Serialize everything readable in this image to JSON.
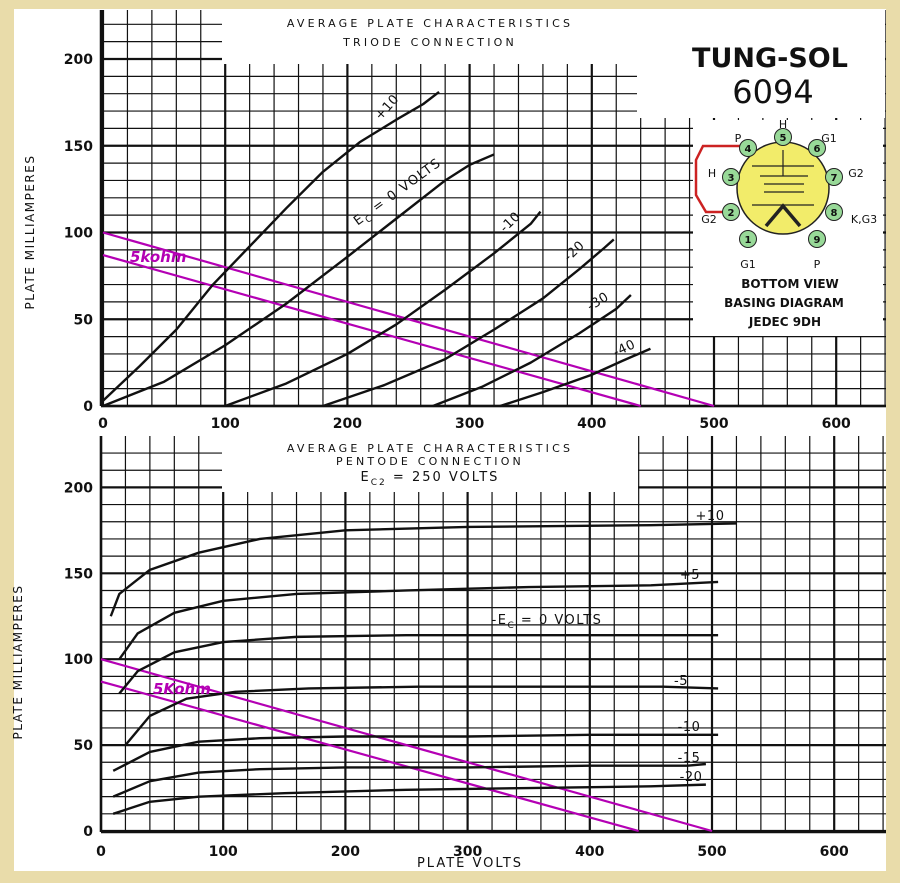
{
  "brand": {
    "name": "TUNG-SOL",
    "tube_type": "6094"
  },
  "basing": {
    "view": "BOTTOM VIEW",
    "diagram": "BASING DIAGRAM",
    "jedec": "JEDEC 9DH",
    "pins": [
      {
        "number": "1",
        "label": "G1"
      },
      {
        "number": "2",
        "label": "G2"
      },
      {
        "number": "3",
        "label": "H"
      },
      {
        "number": "4",
        "label": "P"
      },
      {
        "number": "5",
        "label": "H"
      },
      {
        "number": "6",
        "label": "G1"
      },
      {
        "number": "7",
        "label": "G2"
      },
      {
        "number": "8",
        "label": "K,G3"
      },
      {
        "number": "9",
        "label": "P"
      }
    ],
    "colors": {
      "disk": "#f2ec6a",
      "pin": "#98d998",
      "strap": "#cc2222"
    }
  },
  "chart_data": [
    {
      "type": "line",
      "title": "AVERAGE PLATE CHARACTERISTICS",
      "subtitle": "TRIODE CONNECTION",
      "xlabel": "",
      "ylabel": "PLATE MILLIAMPERES",
      "xlim": [
        0,
        640
      ],
      "ylim": [
        0,
        230
      ],
      "x_ticks": [
        "0",
        "100",
        "200",
        "300",
        "400",
        "500",
        "600"
      ],
      "y_ticks": [
        "0",
        "50",
        "100",
        "150",
        "200"
      ],
      "grid": true,
      "series": [
        {
          "name": "+10",
          "points": [
            [
              0,
              3
            ],
            [
              30,
              23
            ],
            [
              60,
              44
            ],
            [
              90,
              70
            ],
            [
              120,
              92
            ],
            [
              150,
              114
            ],
            [
              180,
              135
            ],
            [
              210,
              152
            ],
            [
              240,
              165
            ],
            [
              262,
              174
            ],
            [
              275,
              181
            ]
          ]
        },
        {
          "name": "E",
          "subscript": "C",
          "suffix": " = 0 VOLTS",
          "points": [
            [
              0,
              0
            ],
            [
              50,
              14
            ],
            [
              100,
              35
            ],
            [
              150,
              59
            ],
            [
              200,
              86
            ],
            [
              240,
              108
            ],
            [
              280,
              130
            ],
            [
              300,
              139
            ],
            [
              320,
              145
            ]
          ]
        },
        {
          "name": "-10",
          "points": [
            [
              100,
              0
            ],
            [
              150,
              13
            ],
            [
              200,
              30
            ],
            [
              240,
              47
            ],
            [
              280,
              67
            ],
            [
              320,
              88
            ],
            [
              350,
              105
            ],
            [
              358,
              112
            ]
          ]
        },
        {
          "name": "-20",
          "points": [
            [
              180,
              0
            ],
            [
              230,
              12
            ],
            [
              280,
              27
            ],
            [
              320,
              44
            ],
            [
              360,
              62
            ],
            [
              390,
              79
            ],
            [
              410,
              91
            ],
            [
              418,
              96
            ]
          ]
        },
        {
          "name": "-30",
          "points": [
            [
              270,
              0
            ],
            [
              310,
              11
            ],
            [
              350,
              25
            ],
            [
              390,
              42
            ],
            [
              420,
              56
            ],
            [
              432,
              64
            ]
          ]
        },
        {
          "name": "-40",
          "points": [
            [
              325,
              0
            ],
            [
              360,
              8
            ],
            [
              400,
              18
            ],
            [
              425,
              26
            ],
            [
              448,
              33
            ]
          ]
        }
      ],
      "load_lines": [
        {
          "label": "5kohm",
          "points": [
            [
              0,
              100
            ],
            [
              500,
              0
            ]
          ],
          "color": "#b400b4"
        },
        {
          "label": "",
          "points": [
            [
              0,
              87
            ],
            [
              440,
              0
            ]
          ],
          "color": "#b400b4"
        }
      ]
    },
    {
      "type": "line",
      "title": "AVERAGE PLATE CHARACTERISTICS",
      "subtitle": "PENTODE CONNECTION",
      "condition_name": "E",
      "condition_subscript": "C2",
      "condition_value": " = 250 VOLTS",
      "xlabel": "PLATE VOLTS",
      "ylabel": "PLATE MILLIAMPERES",
      "xlim": [
        0,
        640
      ],
      "ylim": [
        0,
        230
      ],
      "x_ticks": [
        "0",
        "100",
        "200",
        "300",
        "400",
        "500",
        "600"
      ],
      "y_ticks": [
        "0",
        "50",
        "100",
        "150",
        "200"
      ],
      "grid": true,
      "series": [
        {
          "name": "+10",
          "points": [
            [
              8,
              125
            ],
            [
              15,
              138
            ],
            [
              40,
              152
            ],
            [
              80,
              162
            ],
            [
              130,
              170
            ],
            [
              200,
              175
            ],
            [
              300,
              177
            ],
            [
              450,
              178
            ],
            [
              520,
              179
            ]
          ]
        },
        {
          "name": "+5",
          "points": [
            [
              15,
              100
            ],
            [
              30,
              115
            ],
            [
              60,
              127
            ],
            [
              100,
              134
            ],
            [
              160,
              138
            ],
            [
              250,
              140
            ],
            [
              350,
              142
            ],
            [
              450,
              143
            ],
            [
              505,
              145
            ]
          ]
        },
        {
          "name": "-E",
          "subscript": "C",
          "suffix": " = 0 VOLTS",
          "points": [
            [
              15,
              80
            ],
            [
              30,
              93
            ],
            [
              60,
              104
            ],
            [
              100,
              110
            ],
            [
              160,
              113
            ],
            [
              250,
              114
            ],
            [
              350,
              114
            ],
            [
              450,
              114
            ],
            [
              505,
              114
            ]
          ]
        },
        {
          "name": "-5",
          "points": [
            [
              20,
              50
            ],
            [
              40,
              67
            ],
            [
              70,
              77
            ],
            [
              110,
              81
            ],
            [
              170,
              83
            ],
            [
              260,
              84
            ],
            [
              360,
              84
            ],
            [
              460,
              84
            ],
            [
              505,
              83
            ]
          ]
        },
        {
          "name": "-10",
          "points": [
            [
              10,
              35
            ],
            [
              40,
              46
            ],
            [
              80,
              52
            ],
            [
              130,
              54
            ],
            [
              200,
              55
            ],
            [
              300,
              55
            ],
            [
              400,
              56
            ],
            [
              480,
              56
            ],
            [
              505,
              56
            ]
          ]
        },
        {
          "name": "-15",
          "points": [
            [
              10,
              20
            ],
            [
              40,
              29
            ],
            [
              80,
              34
            ],
            [
              130,
              36
            ],
            [
              200,
              37
            ],
            [
              300,
              37
            ],
            [
              400,
              38
            ],
            [
              480,
              38
            ],
            [
              495,
              39
            ]
          ]
        },
        {
          "name": "-20",
          "points": [
            [
              10,
              10
            ],
            [
              40,
              17
            ],
            [
              80,
              20
            ],
            [
              150,
              22
            ],
            [
              250,
              24
            ],
            [
              350,
              25
            ],
            [
              450,
              26
            ],
            [
              495,
              27
            ]
          ]
        }
      ],
      "load_lines": [
        {
          "label": "5Kohm",
          "points": [
            [
              0,
              100
            ],
            [
              500,
              0
            ]
          ],
          "color": "#b400b4"
        },
        {
          "label": "",
          "points": [
            [
              0,
              87
            ],
            [
              440,
              0
            ]
          ],
          "color": "#b400b4"
        }
      ]
    }
  ]
}
